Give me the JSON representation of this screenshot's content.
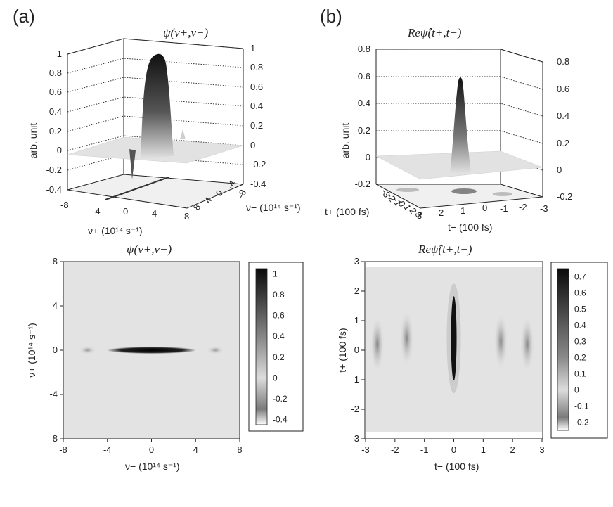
{
  "panels": {
    "a": {
      "label": "(a)"
    },
    "b": {
      "label": "(b)"
    }
  },
  "chart_data": [
    {
      "id": "a-surface",
      "type": "surface3d",
      "title": "ψ(ν+,ν−)",
      "zlabel": "arb. unit",
      "zlim": [
        -0.4,
        1
      ],
      "z_ticks_left": [
        "1",
        "0.8",
        "0.6",
        "0.4",
        "0.2",
        "0",
        "-0.2",
        "-0.4"
      ],
      "z_ticks_right": [
        "1",
        "0.8",
        "0.6",
        "0.4",
        "0.2",
        "0",
        "-0.2",
        "-0.4"
      ],
      "x_ticks": [
        "-8",
        "-4",
        "0",
        "4",
        "8"
      ],
      "y_ticks": [
        "8",
        "4",
        "0",
        "-4",
        "-8"
      ],
      "xlabel": "ν+  (10¹⁴ s⁻¹)",
      "ylabel": "ν−  (10¹⁴ s⁻¹)",
      "peak": {
        "value": 1.0
      },
      "dip": {
        "value": -0.3
      }
    },
    {
      "id": "b-surface",
      "type": "surface3d",
      "title": "Reψ̂(t+,t−)",
      "zlabel": "arb. unit",
      "zlim": [
        -0.2,
        0.8
      ],
      "z_ticks_left": [
        "0.8",
        "0.6",
        "0.4",
        "0.2",
        "0",
        "-0.2"
      ],
      "z_ticks_right": [
        "0.8",
        "0.6",
        "0.4",
        "0.2",
        "0",
        "-0.2"
      ],
      "x_ticks": [
        "3",
        "2",
        "1",
        "0",
        "-1",
        "-2",
        "-3"
      ],
      "y_ticks": [
        "-3",
        "-2",
        "-1",
        "0",
        "1",
        "2",
        "3"
      ],
      "xlabel": "t−  (100 fs)",
      "ylabel": "t+  (100 fs)",
      "peak": {
        "value": 0.7
      }
    },
    {
      "id": "a-contour",
      "type": "heatmap",
      "title": "ψ(ν+,ν−)",
      "xlabel": "ν−  (10¹⁴ s⁻¹)",
      "ylabel": "ν+  (10¹⁴ s⁻¹)",
      "xlim": [
        -8,
        8
      ],
      "ylim": [
        -8,
        8
      ],
      "x_ticks": [
        "-8",
        "-4",
        "0",
        "4",
        "8"
      ],
      "y_ticks": [
        "8",
        "4",
        "0",
        "-4",
        "-8"
      ],
      "colorbar_ticks": [
        "1",
        "0.8",
        "0.6",
        "0.4",
        "0.2",
        "0",
        "-0.2",
        "-0.4"
      ],
      "colorbar_range": [
        -0.45,
        1.05
      ],
      "features": [
        {
          "x_range": [
            -4,
            4
          ],
          "y": 0,
          "value": 1.0
        },
        {
          "x": -5.8,
          "y": 0,
          "value": 0.1
        },
        {
          "x": 5.8,
          "y": 0,
          "value": 0.1
        }
      ]
    },
    {
      "id": "b-contour",
      "type": "heatmap",
      "title": "Reψ̂(t+,t−)",
      "xlabel": "t−  (100 fs)",
      "ylabel": "t+  (100 fs)",
      "xlim": [
        -3,
        3
      ],
      "ylim": [
        -3,
        3
      ],
      "x_ticks": [
        "-3",
        "-2",
        "-1",
        "0",
        "1",
        "2",
        "3"
      ],
      "y_ticks": [
        "3",
        "2",
        "1",
        "0",
        "-1",
        "-2",
        "-3"
      ],
      "colorbar_ticks": [
        "0.7",
        "0.6",
        "0.5",
        "0.4",
        "0.3",
        "0.2",
        "0.1",
        "0",
        "-0.1",
        "-0.2"
      ],
      "colorbar_range": [
        -0.25,
        0.75
      ],
      "features": [
        {
          "x": 0,
          "y": 0.4,
          "value": 0.7
        },
        {
          "x": -2.6,
          "y": 0.2,
          "value": 0.2
        },
        {
          "x": -1.6,
          "y": 0.4,
          "value": 0.15
        },
        {
          "x": 1.6,
          "y": 0.3,
          "value": 0.2
        },
        {
          "x": 2.5,
          "y": 0.2,
          "value": 0.25
        }
      ]
    }
  ]
}
